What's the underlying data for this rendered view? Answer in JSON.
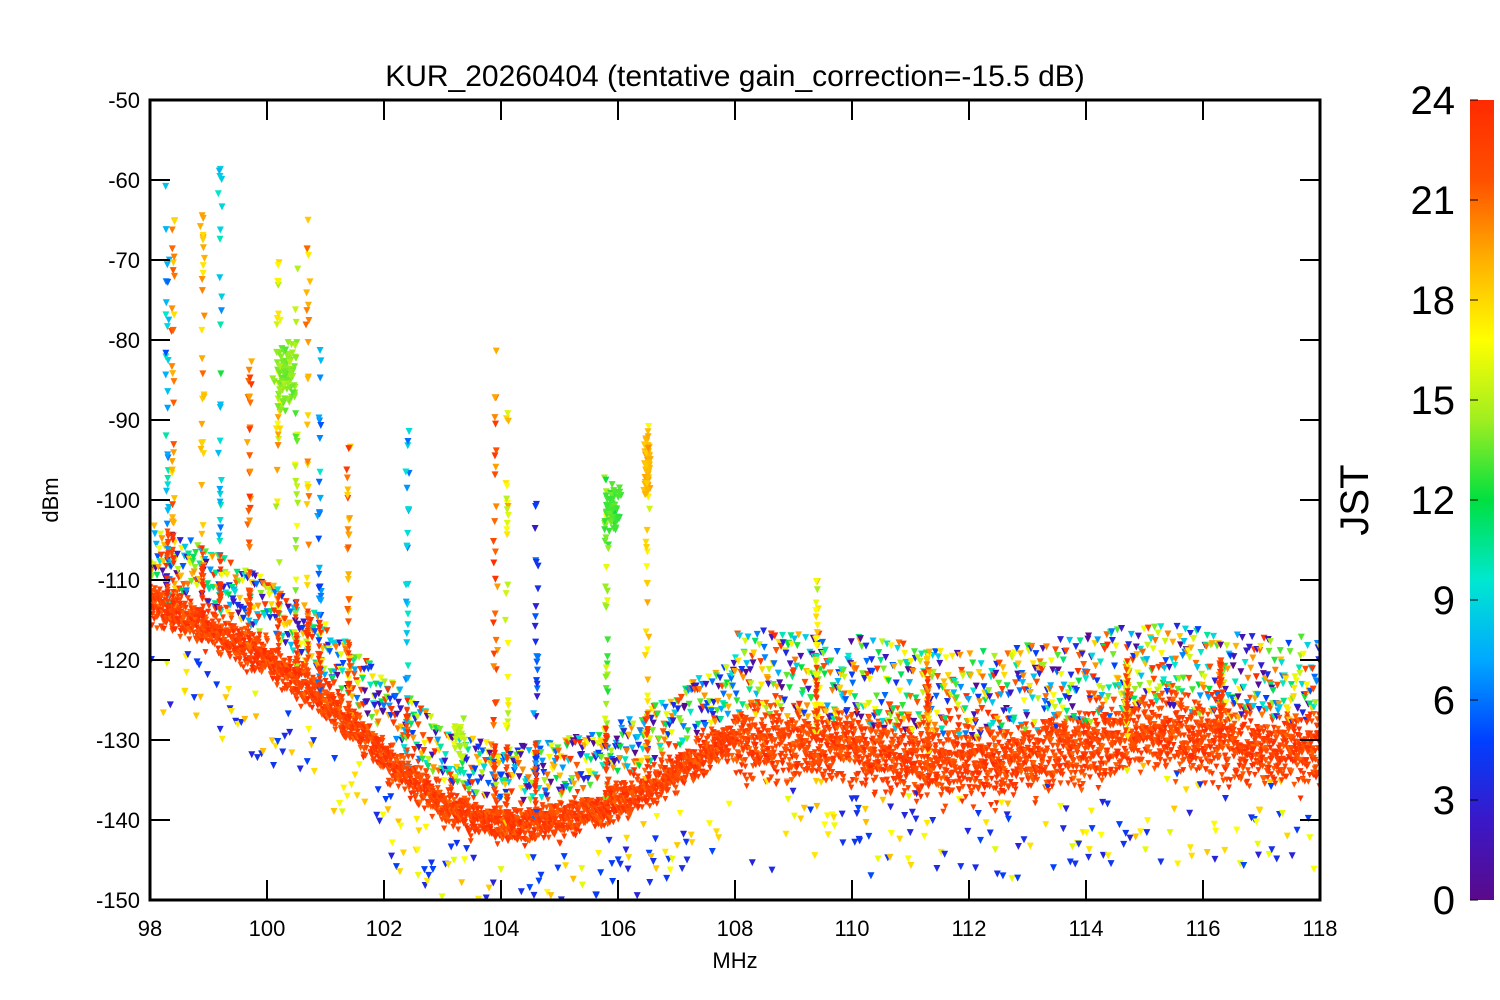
{
  "chart_data": {
    "type": "scatter",
    "title": "KUR_20260404 (tentative gain_correction=-15.5 dB)",
    "xlabel": "MHz",
    "ylabel": "dBm",
    "xlim": [
      98,
      118
    ],
    "ylim": [
      -150,
      -50
    ],
    "x_ticks": [
      "98",
      "100",
      "102",
      "104",
      "106",
      "108",
      "110",
      "112",
      "114",
      "116",
      "118"
    ],
    "y_ticks": [
      "-50",
      "-60",
      "-70",
      "-80",
      "-90",
      "-100",
      "-110",
      "-120",
      "-130",
      "-140",
      "-150"
    ],
    "colorbar": {
      "label": "JST",
      "range": [
        0,
        24
      ],
      "ticks": [
        "0",
        "3",
        "6",
        "9",
        "12",
        "15",
        "18",
        "21",
        "24"
      ],
      "colormap": [
        "#5a0a8a",
        "#3a18c8",
        "#0040ff",
        "#00a8ff",
        "#00e8d0",
        "#00e040",
        "#a0ee20",
        "#ffff00",
        "#ffb000",
        "#ff5000",
        "#ff2a00"
      ]
    },
    "noise_floor_dBm": [
      [
        98.0,
        -113
      ],
      [
        99.0,
        -116
      ],
      [
        100.0,
        -120
      ],
      [
        101.0,
        -125
      ],
      [
        102.0,
        -132
      ],
      [
        103.0,
        -138
      ],
      [
        104.0,
        -141
      ],
      [
        105.0,
        -140
      ],
      [
        106.0,
        -138
      ],
      [
        107.0,
        -134
      ],
      [
        107.9,
        -130
      ],
      [
        108.1,
        -130
      ],
      [
        110.0,
        -131
      ],
      [
        112.0,
        -133
      ],
      [
        114.0,
        -131
      ],
      [
        115.0,
        -129
      ],
      [
        116.0,
        -130
      ],
      [
        117.0,
        -131
      ],
      [
        118.0,
        -131
      ]
    ],
    "peaks": [
      {
        "f": 98.3,
        "top": -60,
        "hour": 8
      },
      {
        "f": 98.4,
        "top": -63,
        "hour": 20
      },
      {
        "f": 98.9,
        "top": -62,
        "hour": 19
      },
      {
        "f": 99.2,
        "top": -58,
        "hour": 9
      },
      {
        "f": 99.7,
        "top": -82,
        "hour": 21
      },
      {
        "f": 100.2,
        "top": -69,
        "hour": 17
      },
      {
        "f": 100.5,
        "top": -70,
        "hour": 15
      },
      {
        "f": 100.7,
        "top": -64,
        "hour": 19
      },
      {
        "f": 100.9,
        "top": -77,
        "hour": 6
      },
      {
        "f": 101.4,
        "top": -93,
        "hour": 20
      },
      {
        "f": 102.4,
        "top": -91,
        "hour": 8
      },
      {
        "f": 103.9,
        "top": -80,
        "hour": 22
      },
      {
        "f": 104.1,
        "top": -89,
        "hour": 17
      },
      {
        "f": 104.6,
        "top": -100,
        "hour": 5
      },
      {
        "f": 105.8,
        "top": -97,
        "hour": 14
      },
      {
        "f": 106.5,
        "top": -89,
        "hour": 18
      },
      {
        "f": 109.4,
        "top": -110,
        "hour": 17
      },
      {
        "f": 111.3,
        "top": -119,
        "hour": 20
      },
      {
        "f": 114.7,
        "top": -119,
        "hour": 18
      },
      {
        "f": 116.3,
        "top": -120,
        "hour": 22
      }
    ]
  }
}
